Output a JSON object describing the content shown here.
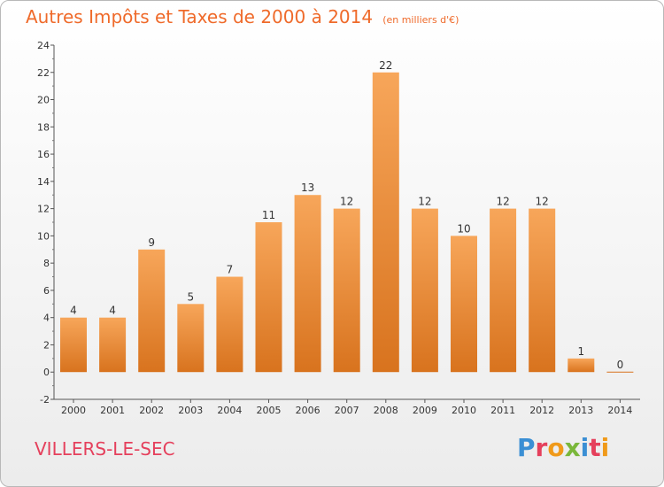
{
  "chart_data": {
    "type": "bar",
    "title": "Autres Impôts et Taxes de 2000 à 2014",
    "unit": "(en milliers d'€)",
    "categories": [
      "2000",
      "2001",
      "2002",
      "2003",
      "2004",
      "2005",
      "2006",
      "2007",
      "2008",
      "2009",
      "2010",
      "2011",
      "2012",
      "2013",
      "2014"
    ],
    "values": [
      4,
      4,
      9,
      5,
      7,
      11,
      13,
      12,
      22,
      12,
      10,
      12,
      12,
      1,
      0
    ],
    "ylim": [
      -2,
      24
    ],
    "yticks": [
      -2,
      0,
      2,
      4,
      6,
      8,
      10,
      12,
      14,
      16,
      18,
      20,
      22,
      24
    ],
    "grid": false,
    "bar_color_top": "#f7a65a",
    "bar_color_bottom": "#d8731e"
  },
  "footer": {
    "commune": "VILLERS-LE-SEC",
    "logo_text": "Proxiti",
    "logo_colors": [
      "#3b8fd4",
      "#e5405c",
      "#f09a1a",
      "#7ab73a",
      "#3b8fd4",
      "#e5405c",
      "#f09a1a"
    ]
  }
}
